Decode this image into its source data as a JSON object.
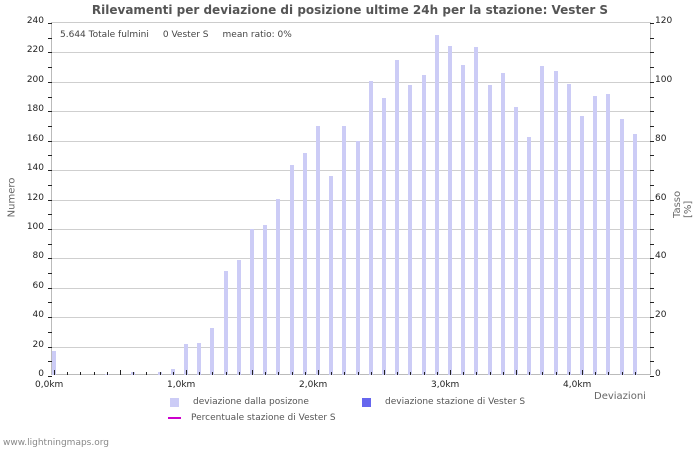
{
  "title": "Rilevamenti per deviazione di posizione ultime 24h per la stazione: Vester S",
  "info": {
    "total": "5.644 Totale fulmini",
    "station": "0 Vester S",
    "ratio": "mean ratio: 0%"
  },
  "axes": {
    "y_left_title": "Numero",
    "y_right_title": "Tasso [%]",
    "x_title": "Deviazioni"
  },
  "legend": {
    "series1": "deviazione dalla posizone",
    "series2": "deviazione stazione di Vester S",
    "series3": "Percentuale stazione di Vester S",
    "colors": {
      "series1": "#ccccf6",
      "series2": "#6666ee",
      "series3": "#cc00cc"
    }
  },
  "footer": "www.lightningmaps.org",
  "chart_data": {
    "type": "bar",
    "title": "Rilevamenti per deviazione di posizione ultime 24h per la stazione: Vester S",
    "xlabel": "Deviazioni",
    "ylabel": "Numero",
    "y2label": "Tasso [%]",
    "ylim": [
      0,
      240
    ],
    "y2lim": [
      0,
      120
    ],
    "yticks": [
      0,
      20,
      40,
      60,
      80,
      100,
      120,
      140,
      160,
      180,
      200,
      220,
      240
    ],
    "y2ticks": [
      0,
      20,
      40,
      60,
      80,
      100,
      120
    ],
    "xtick_labels": [
      "0,0km",
      "1,0km",
      "2,0km",
      "3,0km",
      "4,0km"
    ],
    "grid": true,
    "legend_position": "bottom",
    "categories": [
      "0.0",
      "0.1",
      "0.2",
      "0.3",
      "0.4",
      "0.5",
      "0.6",
      "0.7",
      "0.8",
      "0.9",
      "1.0",
      "1.1",
      "1.2",
      "1.3",
      "1.4",
      "1.5",
      "1.6",
      "1.7",
      "1.8",
      "1.9",
      "2.0",
      "2.1",
      "2.2",
      "2.3",
      "2.4",
      "2.5",
      "2.6",
      "2.7",
      "2.8",
      "2.9",
      "3.0",
      "3.1",
      "3.2",
      "3.3",
      "3.4",
      "3.5",
      "3.6",
      "3.7",
      "3.8",
      "3.9",
      "4.0",
      "4.1",
      "4.2",
      "4.3",
      "4.4"
    ],
    "series": [
      {
        "name": "deviazione dalla posizone",
        "values": [
          16,
          0,
          0,
          0,
          1,
          0,
          2,
          0,
          2,
          4,
          21,
          22,
          32,
          71,
          78,
          99,
          102,
          120,
          143,
          151,
          169,
          135,
          169,
          159,
          200,
          188,
          214,
          197,
          204,
          231,
          224,
          211,
          223,
          197,
          205,
          182,
          162,
          210,
          207,
          198,
          176,
          190,
          191,
          174,
          164
        ]
      },
      {
        "name": "deviazione stazione di Vester S",
        "values": [
          0,
          0,
          0,
          0,
          0,
          0,
          0,
          0,
          0,
          0,
          0,
          0,
          0,
          0,
          0,
          0,
          0,
          0,
          0,
          0,
          0,
          0,
          0,
          0,
          0,
          0,
          0,
          0,
          0,
          0,
          0,
          0,
          0,
          0,
          0,
          0,
          0,
          0,
          0,
          0,
          0,
          0,
          0,
          0,
          0
        ]
      },
      {
        "name": "Percentuale stazione di Vester S",
        "type": "line",
        "values": [
          0,
          0,
          0,
          0,
          0,
          0,
          0,
          0,
          0,
          0,
          0,
          0,
          0,
          0,
          0,
          0,
          0,
          0,
          0,
          0,
          0,
          0,
          0,
          0,
          0,
          0,
          0,
          0,
          0,
          0,
          0,
          0,
          0,
          0,
          0,
          0,
          0,
          0,
          0,
          0,
          0,
          0,
          0,
          0,
          0
        ]
      }
    ]
  }
}
